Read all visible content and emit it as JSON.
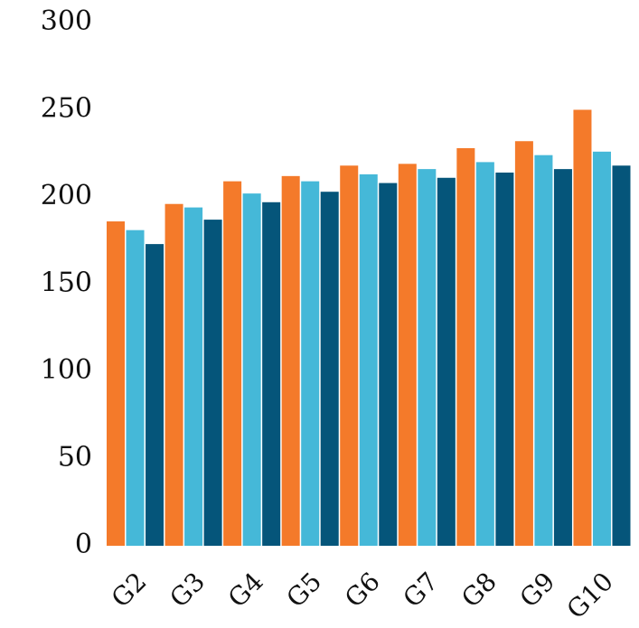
{
  "chart_data": {
    "type": "bar",
    "categories": [
      "G2",
      "G3",
      "G4",
      "G5",
      "G6",
      "G7",
      "G8",
      "G9",
      "G10"
    ],
    "series": [
      {
        "color": "#F47A2A",
        "values": [
          186,
          196,
          209,
          212,
          218,
          219,
          228,
          232,
          250
        ]
      },
      {
        "color": "#45B8D8",
        "values": [
          181,
          194,
          202,
          209,
          213,
          216,
          220,
          224,
          226
        ]
      },
      {
        "color": "#05557A",
        "values": [
          173,
          187,
          197,
          203,
          208,
          211,
          214,
          216,
          218
        ]
      }
    ],
    "ylim": [
      0,
      300
    ],
    "yticks": [
      "0",
      "50",
      "100",
      "150",
      "200",
      "250",
      "300"
    ],
    "grid": false,
    "legend": "none",
    "title": "",
    "xlabel": "",
    "ylabel": ""
  }
}
